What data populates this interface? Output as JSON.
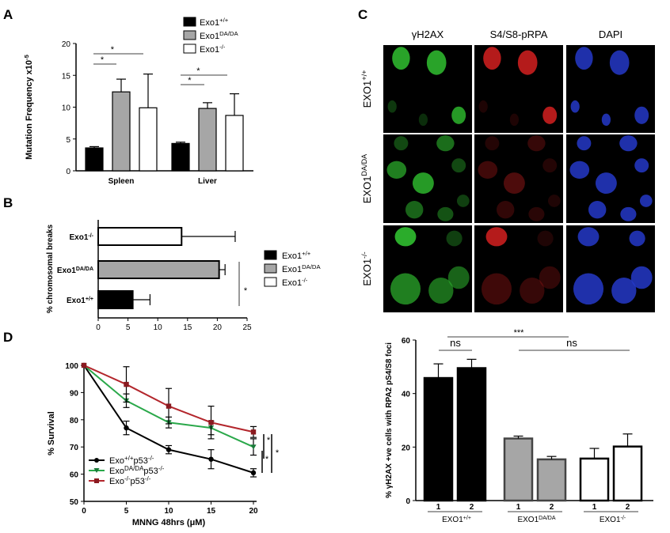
{
  "panels": {
    "A": "A",
    "B": "B",
    "C": "C",
    "D": "D"
  },
  "colors": {
    "wt": "#000000",
    "da": "#a6a6a6",
    "ko": "#ffffff",
    "green": "#2db52d",
    "red": "#c81e1e",
    "blue": "#2438c8",
    "d_da": "#2aa84a",
    "d_ko": "#b3262c"
  },
  "chart_data": [
    {
      "panel": "A",
      "type": "bar",
      "ylabel": "Mutation Frequency x10",
      "ylabel_sup": "-5",
      "ylim": [
        0,
        20
      ],
      "yticks": [
        0,
        5,
        10,
        15,
        20
      ],
      "categories": [
        "Spleen",
        "Liver"
      ],
      "series": [
        {
          "name": "Exo1",
          "sup": "+/+",
          "values": [
            3.6,
            4.3
          ],
          "errors": [
            0.2,
            0.2
          ]
        },
        {
          "name": "Exo1",
          "sup": "DA/DA",
          "values": [
            12.4,
            9.8
          ],
          "errors": [
            2.0,
            0.9
          ]
        },
        {
          "name": "Exo1",
          "sup": "-/-",
          "values": [
            9.9,
            8.7
          ],
          "errors": [
            5.3,
            3.4
          ]
        }
      ],
      "sig_marks": [
        "*",
        "*",
        "*",
        "*"
      ]
    },
    {
      "panel": "B",
      "type": "bar",
      "orientation": "horizontal",
      "xlabel": "",
      "ylabel": "% chromosomal breaks",
      "xlim": [
        0,
        25
      ],
      "xticks": [
        0,
        5,
        10,
        15,
        20,
        25
      ],
      "categories": [
        {
          "name": "Exo1",
          "sup": "-/-"
        },
        {
          "name": "Exo1",
          "sup": "DA/DA"
        },
        {
          "name": "Exo1",
          "sup": "+/+"
        }
      ],
      "values": [
        14.0,
        20.3,
        5.8
      ],
      "errors": [
        9.0,
        1.0,
        2.9
      ],
      "legend": [
        {
          "name": "Exo1",
          "sup": "+/+"
        },
        {
          "name": "Exo1",
          "sup": "DA/DA"
        },
        {
          "name": "Exo1",
          "sup": "-/-"
        }
      ],
      "sig_marks": [
        "*"
      ]
    },
    {
      "panel": "C-bottom",
      "type": "bar",
      "ylabel": "% γH2AX +ve cells with RPA2 pS4/S8 foci",
      "ylim": [
        0,
        60
      ],
      "yticks": [
        0,
        20,
        40,
        60
      ],
      "groups": [
        {
          "name": "EXO1",
          "sup": "+/+",
          "bars": [
            "1",
            "2"
          ],
          "values": [
            45.8,
            49.5
          ],
          "errors": [
            5.3,
            3.3
          ]
        },
        {
          "name": "EXO1",
          "sup": "DA/DA",
          "bars": [
            "1",
            "2"
          ],
          "values": [
            23.2,
            15.4
          ],
          "errors": [
            0.9,
            1.1
          ]
        },
        {
          "name": "EXO1",
          "sup": "-/-",
          "bars": [
            "1",
            "2"
          ],
          "values": [
            15.7,
            20.2
          ],
          "errors": [
            3.8,
            4.7
          ]
        }
      ],
      "sig_marks": [
        "ns",
        "***",
        "ns"
      ]
    },
    {
      "panel": "D",
      "type": "line",
      "xlabel": "MNNG 48hrs (μM)",
      "ylabel": "% Survival",
      "xlim": [
        0,
        20
      ],
      "xticks": [
        0,
        5,
        10,
        15,
        20
      ],
      "ylim": [
        50,
        100
      ],
      "yticks": [
        50,
        60,
        70,
        80,
        90,
        100
      ],
      "x": [
        0,
        5,
        10,
        15,
        20
      ],
      "series": [
        {
          "name": "Exo",
          "sup1": "+/+",
          "mid": "p53",
          "sup2": "-/-",
          "values": [
            100,
            77,
            69,
            65.5,
            60.5
          ],
          "errors": [
            0,
            2.5,
            1.5,
            3.5,
            1.5
          ],
          "marker": "circle"
        },
        {
          "name": "Exo",
          "sup1": "DA/DA",
          "mid": "p53",
          "sup2": "-/-",
          "values": [
            100,
            87,
            79,
            77,
            70
          ],
          "errors": [
            0,
            2.5,
            2.0,
            2.5,
            3.0
          ],
          "marker": "triangle-down"
        },
        {
          "name": "Exo",
          "sup1": "-/-",
          "mid": "p53",
          "sup2": "-/-",
          "values": [
            100,
            93,
            85,
            79,
            75.5
          ],
          "errors": [
            0,
            6.5,
            6.5,
            6.0,
            2.0
          ],
          "marker": "square"
        }
      ],
      "sig_marks": [
        "*",
        "*",
        "*"
      ]
    }
  ],
  "micrographs": {
    "columns": [
      "γH2AX",
      "S4/S8-pRPA",
      "DAPI"
    ],
    "rows": [
      {
        "name": "EXO1",
        "sup": "+/+"
      },
      {
        "name": "EXO1",
        "sup": "DA/DA"
      },
      {
        "name": "EXO1",
        "sup": "-/-"
      }
    ]
  }
}
